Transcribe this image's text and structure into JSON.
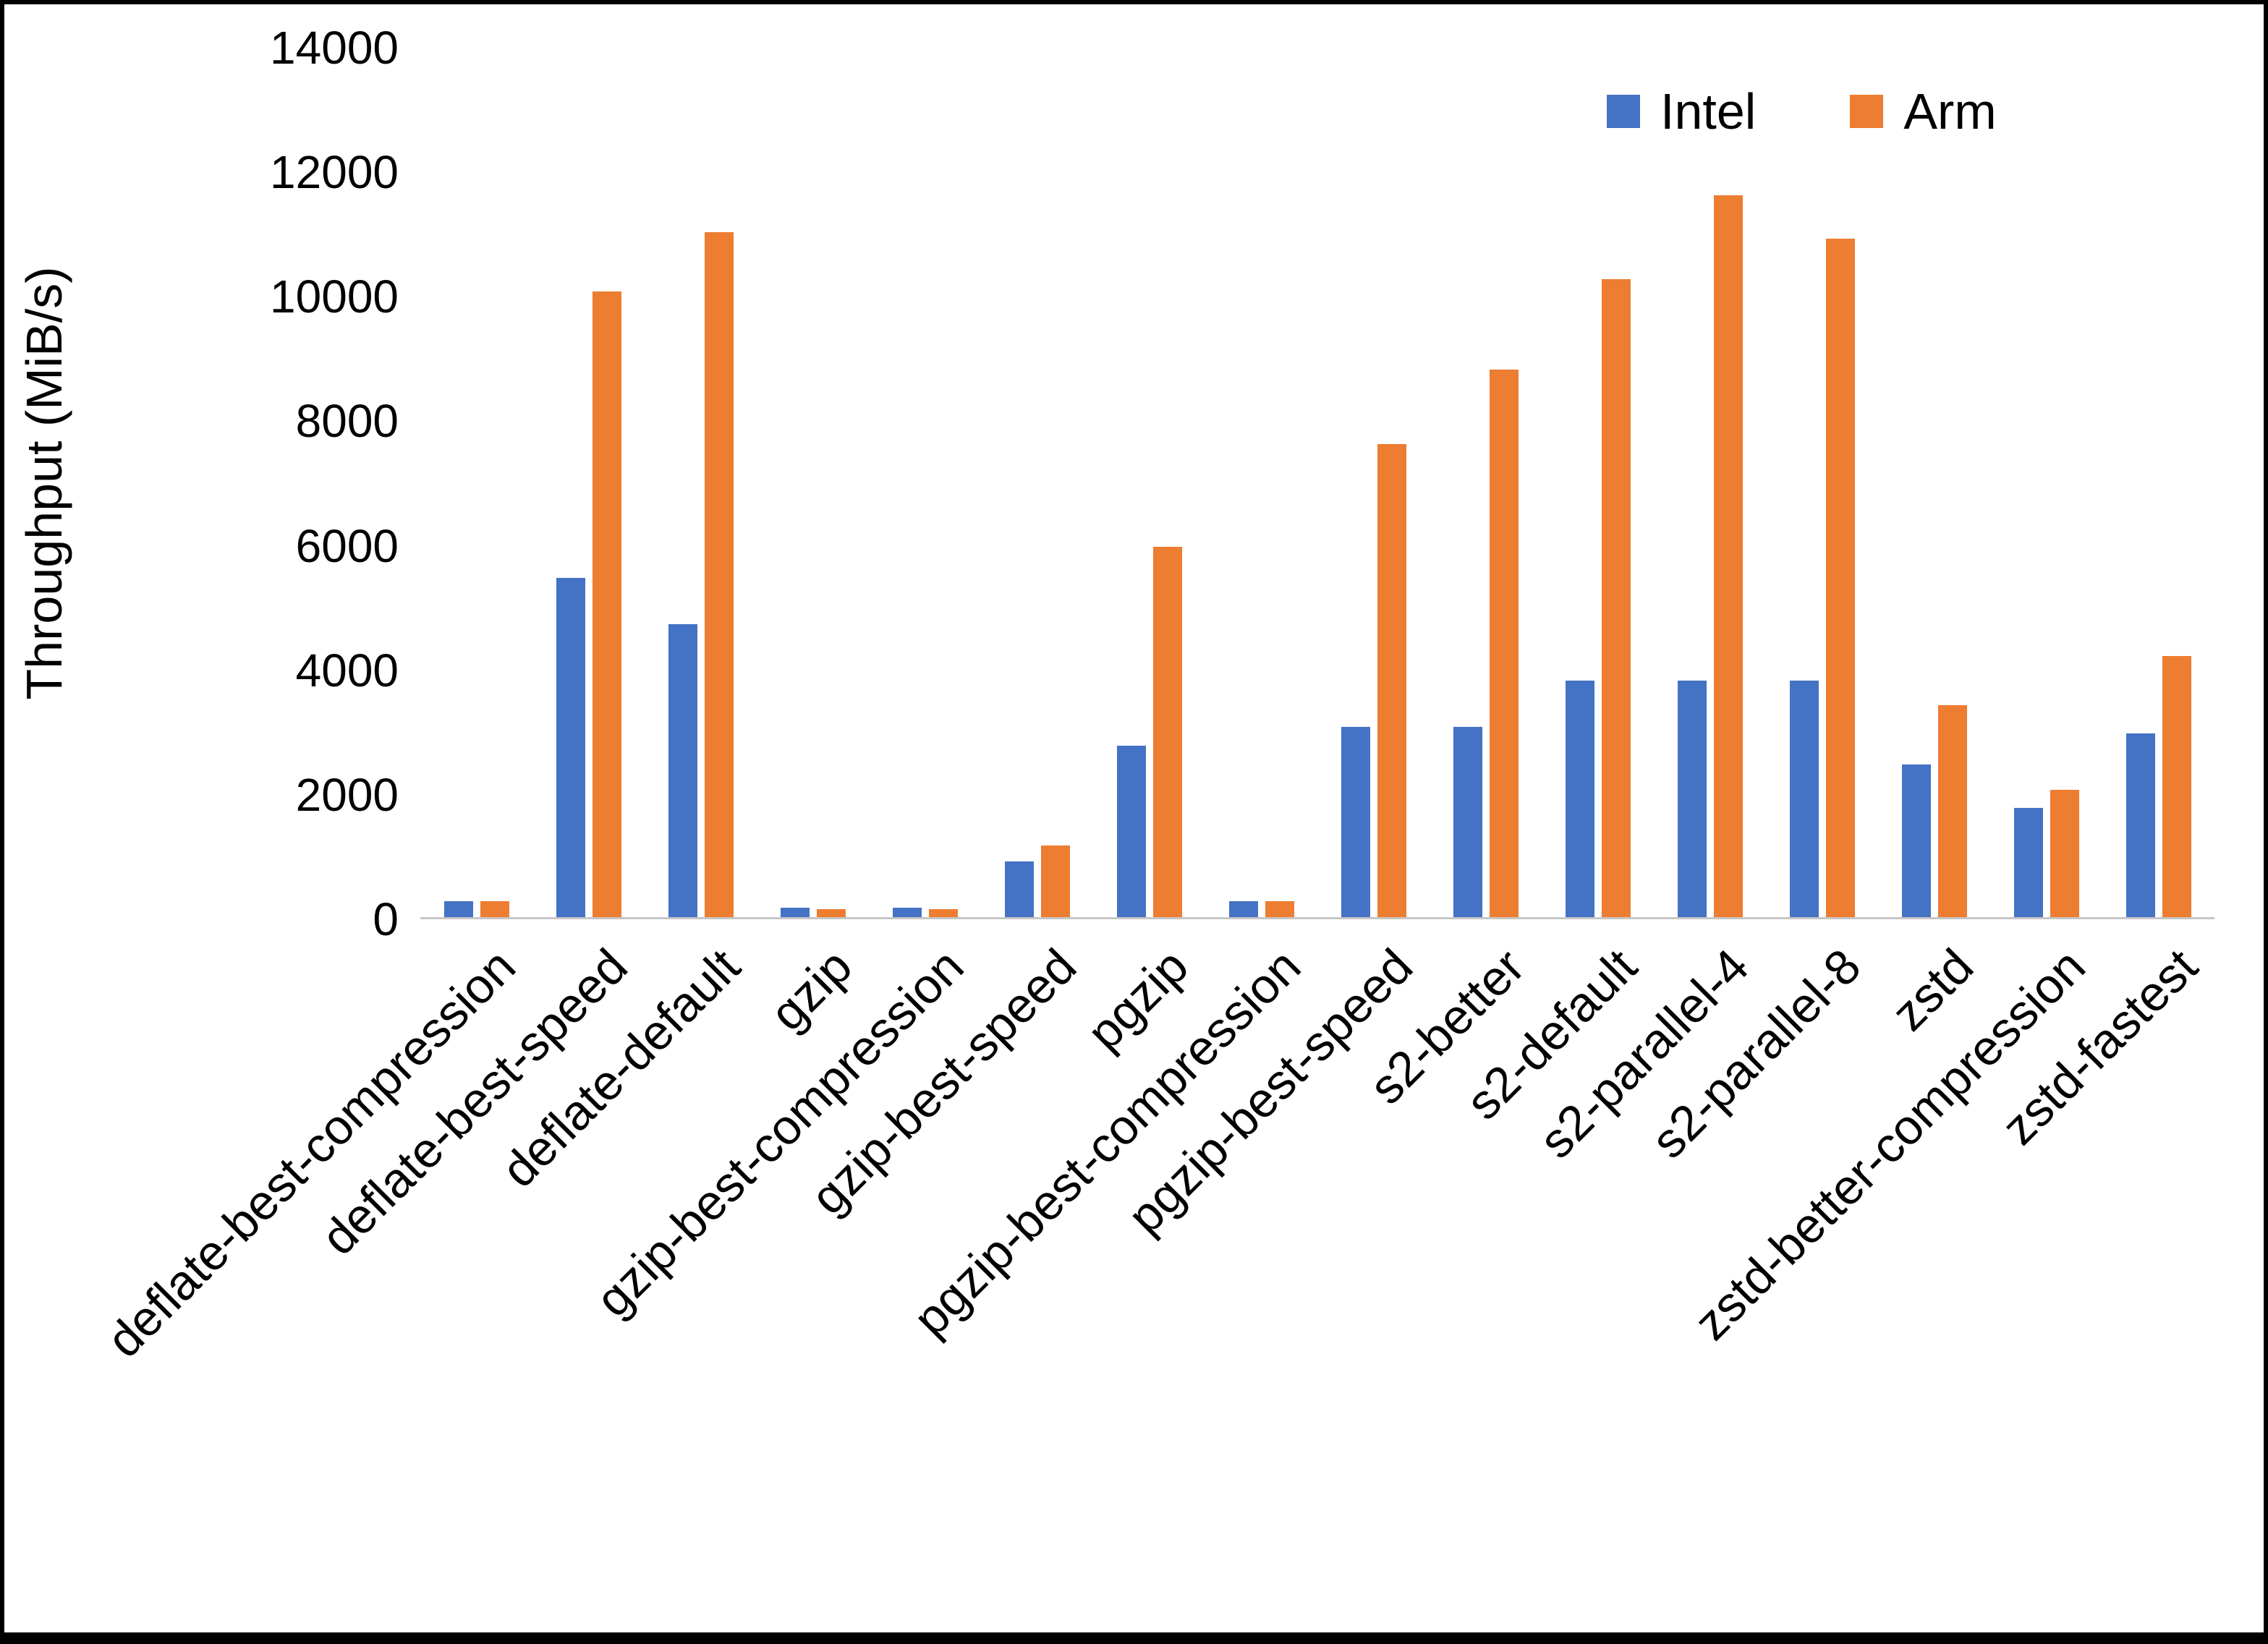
{
  "chart_data": {
    "type": "bar",
    "title": "",
    "xlabel": "",
    "ylabel": "Throughput (MiB/s)",
    "ylim": [
      0,
      14000
    ],
    "yticks": [
      0,
      2000,
      4000,
      6000,
      8000,
      10000,
      12000,
      14000
    ],
    "grid": false,
    "legend_position": "top-right",
    "categories": [
      "deflate-best-compression",
      "deflate-best-speed",
      "deflate-default",
      "gzip",
      "gzip-best-compression",
      "gzip-best-speed",
      "pgzip",
      "pgzip-best-compression",
      "pgzip-best-speed",
      "s2-better",
      "s2-default",
      "s2-parallel-4",
      "s2-parallel-8",
      "zstd",
      "zstd-better-compression",
      "zstd-fastest"
    ],
    "series": [
      {
        "name": "Intel",
        "color": "#4472C4",
        "values": [
          250,
          5450,
          4700,
          150,
          150,
          900,
          2750,
          250,
          3050,
          3050,
          3800,
          3800,
          3800,
          2450,
          1750,
          2950
        ]
      },
      {
        "name": "Arm",
        "color": "#ED7D31",
        "values": [
          250,
          10050,
          11000,
          130,
          130,
          1150,
          5950,
          250,
          7600,
          8800,
          10250,
          11600,
          10900,
          3400,
          2050,
          4200
        ]
      }
    ]
  }
}
